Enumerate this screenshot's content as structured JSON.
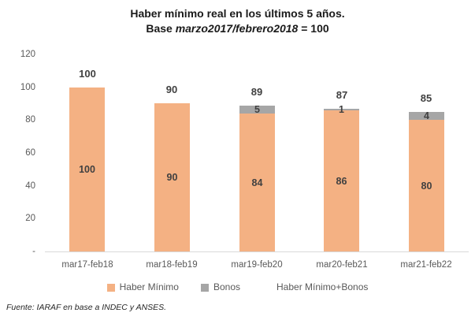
{
  "title": {
    "line1": "Haber mínimo real en los últimos 5 años.",
    "line2_prefix": "Base ",
    "line2_italic": "marzo2017/febrero2018",
    "line2_suffix": " = 100"
  },
  "chart_data": {
    "type": "bar",
    "stacked": true,
    "title": "Haber mínimo real en los últimos 5 años. Base marzo2017/febrero2018 = 100",
    "categories": [
      "mar17-feb18",
      "mar18-feb19",
      "mar19-feb20",
      "mar20-feb21",
      "mar21-feb22"
    ],
    "series": [
      {
        "name": "Haber Mínimo",
        "color": "#f4b183",
        "values": [
          100,
          90,
          84,
          86,
          80
        ]
      },
      {
        "name": "Bonos",
        "color": "#a6a6a6",
        "values": [
          0,
          0,
          5,
          1,
          4
        ]
      }
    ],
    "totals": [
      100,
      90,
      89,
      87,
      85
    ],
    "total_series_name": "Haber Mínimo+Bonos",
    "y_ticks": [
      "120",
      "100",
      "80",
      "60",
      "40",
      "20",
      "-"
    ],
    "ylim": [
      0,
      120
    ],
    "grid": false,
    "legend_position": "bottom",
    "label_color": "#404040",
    "axis_text_color": "#595959",
    "baseline_color": "#d9d9d9"
  },
  "footer": {
    "source": "Fuente: IARAF en base a INDEC y ANSES."
  }
}
